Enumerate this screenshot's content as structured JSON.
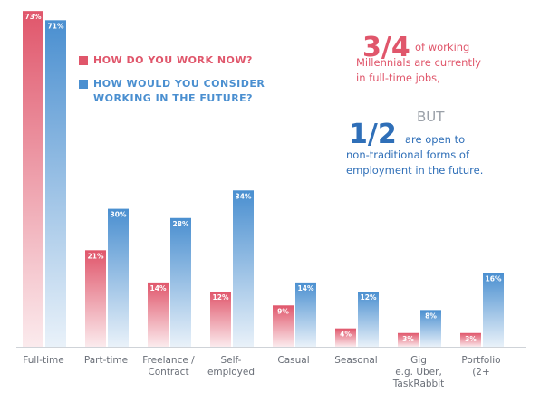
{
  "chart_data": {
    "type": "bar",
    "categories": [
      "Full-time",
      "Part-time",
      "Freelance /\nContract",
      "Self-\nemployed",
      "Casual",
      "Seasonal",
      "Gig\ne.g. Uber,\nTaskRabbit",
      "Portfolio\n(2+"
    ],
    "series": [
      {
        "name": "HOW DO YOU WORK NOW?",
        "color": "#e0566b",
        "values": [
          73,
          21,
          14,
          12,
          9,
          4,
          3,
          3
        ],
        "value_labels": [
          "73%",
          "21%",
          "14%",
          "12%",
          "9%",
          "4%",
          "3%",
          "3%"
        ]
      },
      {
        "name": "HOW WOULD YOU CONSIDER\nWORKING IN THE FUTURE?",
        "color": "#4a8fd0",
        "values": [
          71,
          30,
          28,
          34,
          14,
          12,
          8,
          16
        ],
        "value_labels": [
          "71%",
          "30%",
          "28%",
          "34%",
          "14%",
          "12%",
          "8%",
          "16%"
        ]
      }
    ],
    "annotation_figure_1": "3/4",
    "annotation_text_1": "of working\nMillennials are currently\nin full-time jobs,",
    "annotation_but": "BUT",
    "annotation_figure_2": "1/2",
    "annotation_text_2": "are open to\nnon-traditional forms of\nemployment in the future."
  }
}
